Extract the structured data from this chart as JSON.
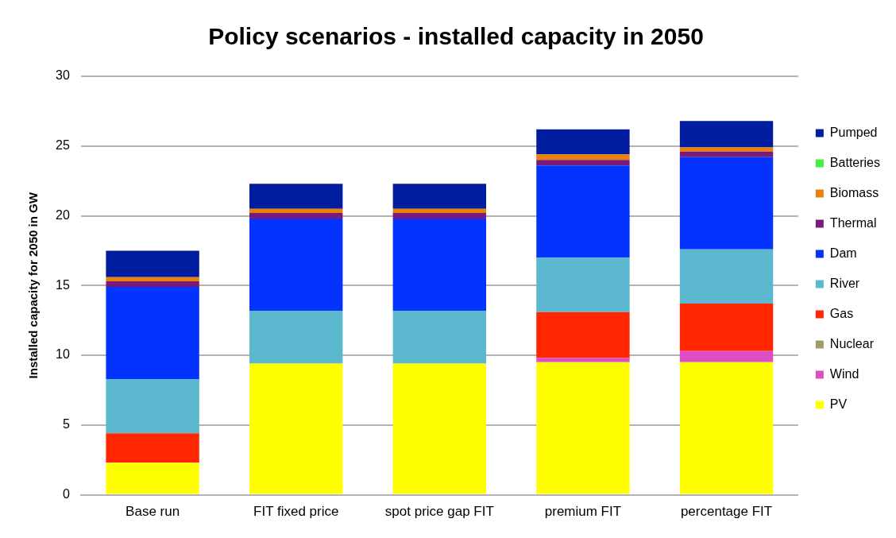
{
  "chart_data": {
    "type": "bar",
    "title": "Policy scenarios - installed capacity in 2050",
    "ylabel": "Installed capacity for 2050 in GW",
    "categories": [
      "Base run",
      "FIT fixed price",
      "spot price gap FIT",
      "premium FIT",
      "percentage FIT"
    ],
    "stacked": true,
    "ylim": [
      0,
      30
    ],
    "yticks": [
      0,
      5,
      10,
      15,
      20,
      25,
      30
    ],
    "grid": "y",
    "legend": "right",
    "series": [
      {
        "name": "PV",
        "color": "#ffff00",
        "values": [
          2.3,
          9.4,
          9.4,
          9.5,
          9.5
        ]
      },
      {
        "name": "Wind",
        "color": "#dd4dc4",
        "values": [
          0,
          0,
          0,
          0.3,
          0.8
        ]
      },
      {
        "name": "Nuclear",
        "color": "#a09a6a",
        "values": [
          0,
          0,
          0,
          0,
          0
        ]
      },
      {
        "name": "Gas",
        "color": "#ff2600",
        "values": [
          2.1,
          0,
          0,
          3.3,
          3.4
        ]
      },
      {
        "name": "River",
        "color": "#5bb8ce",
        "values": [
          3.9,
          3.8,
          3.8,
          3.9,
          3.9
        ]
      },
      {
        "name": "Dam",
        "color": "#0433ff",
        "values": [
          6.6,
          6.6,
          6.6,
          6.6,
          6.6
        ]
      },
      {
        "name": "Thermal",
        "color": "#7a1a78",
        "values": [
          0.4,
          0.4,
          0.4,
          0.4,
          0.4
        ]
      },
      {
        "name": "Biomass",
        "color": "#e8800a",
        "values": [
          0.3,
          0.3,
          0.3,
          0.4,
          0.3
        ]
      },
      {
        "name": "Batteries",
        "color": "#44ee44",
        "values": [
          0,
          0,
          0,
          0,
          0
        ]
      },
      {
        "name": "Pumped",
        "color": "#001c9f",
        "values": [
          1.9,
          1.8,
          1.8,
          1.8,
          1.9
        ]
      }
    ]
  }
}
